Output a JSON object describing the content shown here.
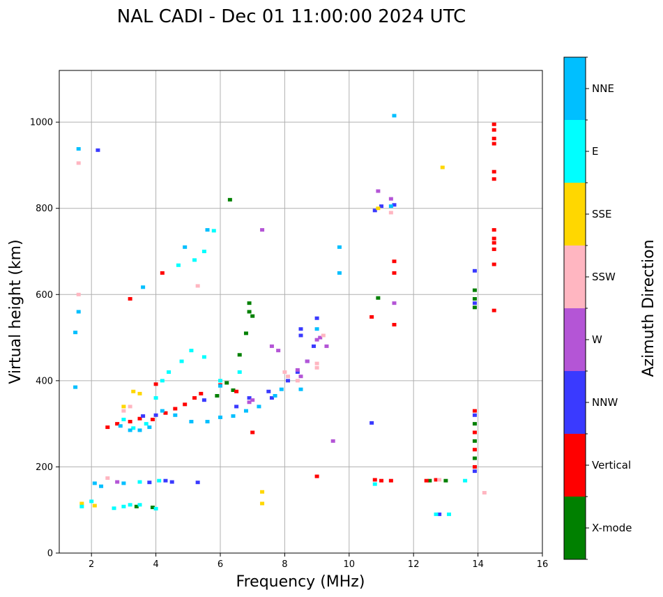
{
  "chart_data": {
    "type": "scatter",
    "title": "NAL CADI - Dec 01 11:00:00 2024 UTC",
    "xlabel": "Frequency (MHz)",
    "ylabel": "Virtual height (km)",
    "xlim": [
      1,
      16
    ],
    "ylim": [
      0,
      1120
    ],
    "xticks": [
      2,
      4,
      6,
      8,
      10,
      12,
      14,
      16
    ],
    "yticks": [
      0,
      200,
      400,
      600,
      800,
      1000
    ],
    "grid": true,
    "colorbar": {
      "label": "Azimuth Direction",
      "categories": [
        {
          "name": "X-mode",
          "color": "#008000"
        },
        {
          "name": "Vertical",
          "color": "#ff0000"
        },
        {
          "name": "NNW",
          "color": "#3a3aff"
        },
        {
          "name": "W",
          "color": "#b455d6"
        },
        {
          "name": "SSW",
          "color": "#ffb6c1"
        },
        {
          "name": "SSE",
          "color": "#ffd700"
        },
        {
          "name": "E",
          "color": "#00ffff"
        },
        {
          "name": "NNE",
          "color": "#00bfff"
        }
      ]
    },
    "series": [
      {
        "name": "X-mode",
        "points": [
          [
            3.4,
            108
          ],
          [
            3.9,
            106
          ],
          [
            6.3,
            820
          ],
          [
            6.9,
            580
          ],
          [
            6.9,
            560
          ],
          [
            7.0,
            550
          ],
          [
            6.6,
            460
          ],
          [
            6.8,
            510
          ],
          [
            10.9,
            592
          ],
          [
            13.9,
            610
          ],
          [
            13.9,
            590
          ],
          [
            13.9,
            570
          ],
          [
            13.9,
            300
          ],
          [
            13.9,
            260
          ],
          [
            13.9,
            220
          ],
          [
            13.0,
            168
          ],
          [
            12.5,
            168
          ],
          [
            6.2,
            395
          ],
          [
            6.4,
            378
          ],
          [
            5.9,
            365
          ]
        ]
      },
      {
        "name": "Vertical",
        "points": [
          [
            2.5,
            292
          ],
          [
            2.8,
            300
          ],
          [
            3.2,
            305
          ],
          [
            3.5,
            312
          ],
          [
            3.9,
            310
          ],
          [
            4.3,
            325
          ],
          [
            4.6,
            335
          ],
          [
            4.9,
            345
          ],
          [
            5.2,
            360
          ],
          [
            5.4,
            370
          ],
          [
            4.2,
            650
          ],
          [
            3.2,
            590
          ],
          [
            4.0,
            392
          ],
          [
            10.8,
            170
          ],
          [
            11.0,
            168
          ],
          [
            11.3,
            168
          ],
          [
            9.0,
            178
          ],
          [
            12.4,
            168
          ],
          [
            12.7,
            170
          ],
          [
            14.5,
            995
          ],
          [
            14.5,
            982
          ],
          [
            14.5,
            962
          ],
          [
            14.5,
            950
          ],
          [
            14.5,
            885
          ],
          [
            14.5,
            868
          ],
          [
            14.5,
            750
          ],
          [
            14.5,
            730
          ],
          [
            14.5,
            720
          ],
          [
            14.5,
            705
          ],
          [
            14.5,
            670
          ],
          [
            14.5,
            563
          ],
          [
            13.9,
            330
          ],
          [
            13.9,
            280
          ],
          [
            13.9,
            240
          ],
          [
            13.9,
            200
          ],
          [
            11.4,
            650
          ],
          [
            11.4,
            530
          ],
          [
            10.7,
            548
          ],
          [
            11.4,
            677
          ],
          [
            7.0,
            280
          ],
          [
            6.5,
            375
          ],
          [
            6.0,
            390
          ]
        ]
      },
      {
        "name": "NNW",
        "points": [
          [
            10.8,
            795
          ],
          [
            11.0,
            805
          ],
          [
            11.4,
            808
          ],
          [
            8.9,
            480
          ],
          [
            9.0,
            545
          ],
          [
            8.5,
            520
          ],
          [
            8.5,
            505
          ],
          [
            8.7,
            445
          ],
          [
            8.4,
            420
          ],
          [
            8.1,
            400
          ],
          [
            7.6,
            360
          ],
          [
            7.5,
            375
          ],
          [
            6.5,
            340
          ],
          [
            6.9,
            360
          ],
          [
            5.5,
            355
          ],
          [
            4.0,
            320
          ],
          [
            3.6,
            318
          ],
          [
            4.3,
            168
          ],
          [
            3.8,
            164
          ],
          [
            4.5,
            165
          ],
          [
            5.3,
            164
          ],
          [
            2.2,
            935
          ],
          [
            10.7,
            302
          ],
          [
            12.8,
            90
          ],
          [
            13.9,
            655
          ],
          [
            13.9,
            580
          ],
          [
            13.9,
            320
          ],
          [
            13.9,
            190
          ]
        ]
      },
      {
        "name": "W",
        "points": [
          [
            8.4,
            425
          ],
          [
            8.5,
            410
          ],
          [
            8.7,
            445
          ],
          [
            9.0,
            495
          ],
          [
            9.1,
            500
          ],
          [
            9.3,
            480
          ],
          [
            7.6,
            480
          ],
          [
            7.8,
            470
          ],
          [
            7.3,
            750
          ],
          [
            10.9,
            840
          ],
          [
            11.3,
            822
          ],
          [
            11.4,
            580
          ],
          [
            9.5,
            260
          ],
          [
            7.0,
            355
          ],
          [
            6.9,
            350
          ],
          [
            2.8,
            165
          ]
        ]
      },
      {
        "name": "SSW",
        "points": [
          [
            1.6,
            905
          ],
          [
            1.6,
            600
          ],
          [
            5.3,
            620
          ],
          [
            8.0,
            420
          ],
          [
            8.1,
            410
          ],
          [
            8.4,
            400
          ],
          [
            9.0,
            430
          ],
          [
            9.0,
            440
          ],
          [
            9.2,
            505
          ],
          [
            11.3,
            790
          ],
          [
            12.8,
            170
          ],
          [
            14.2,
            140
          ],
          [
            2.5,
            174
          ],
          [
            3.2,
            340
          ],
          [
            3.0,
            330
          ]
        ]
      },
      {
        "name": "SSE",
        "points": [
          [
            3.0,
            340
          ],
          [
            3.3,
            375
          ],
          [
            3.5,
            370
          ],
          [
            10.9,
            800
          ],
          [
            12.9,
            895
          ],
          [
            7.3,
            115
          ],
          [
            7.3,
            142
          ],
          [
            1.7,
            115
          ],
          [
            2.1,
            110
          ]
        ]
      },
      {
        "name": "E",
        "points": [
          [
            3.0,
            108
          ],
          [
            3.2,
            112
          ],
          [
            2.7,
            104
          ],
          [
            1.7,
            108
          ],
          [
            2.0,
            120
          ],
          [
            3.5,
            112
          ],
          [
            4.0,
            103
          ],
          [
            3.5,
            165
          ],
          [
            4.1,
            168
          ],
          [
            3.0,
            310
          ],
          [
            3.3,
            290
          ],
          [
            3.7,
            300
          ],
          [
            4.0,
            360
          ],
          [
            4.2,
            400
          ],
          [
            4.4,
            420
          ],
          [
            4.8,
            445
          ],
          [
            5.1,
            470
          ],
          [
            5.5,
            455
          ],
          [
            6.0,
            400
          ],
          [
            6.6,
            420
          ],
          [
            5.8,
            748
          ],
          [
            5.5,
            700
          ],
          [
            5.2,
            680
          ],
          [
            4.7,
            668
          ],
          [
            13.1,
            90
          ],
          [
            12.7,
            90
          ],
          [
            13.6,
            168
          ],
          [
            10.8,
            160
          ]
        ]
      },
      {
        "name": "NNE",
        "points": [
          [
            1.5,
            512
          ],
          [
            1.5,
            385
          ],
          [
            1.6,
            938
          ],
          [
            1.6,
            560
          ],
          [
            2.3,
            155
          ],
          [
            2.1,
            162
          ],
          [
            3.8,
            292
          ],
          [
            3.5,
            285
          ],
          [
            3.2,
            285
          ],
          [
            2.9,
            295
          ],
          [
            4.2,
            330
          ],
          [
            4.6,
            320
          ],
          [
            5.1,
            305
          ],
          [
            5.6,
            305
          ],
          [
            6.0,
            315
          ],
          [
            6.4,
            318
          ],
          [
            6.8,
            330
          ],
          [
            7.2,
            340
          ],
          [
            7.7,
            365
          ],
          [
            7.9,
            380
          ],
          [
            8.5,
            380
          ],
          [
            9.7,
            650
          ],
          [
            9.7,
            710
          ],
          [
            11.4,
            1015
          ],
          [
            11.3,
            805
          ],
          [
            3.6,
            617
          ],
          [
            4.9,
            710
          ],
          [
            5.6,
            750
          ],
          [
            6.0,
            388
          ],
          [
            3.0,
            162
          ],
          [
            9.0,
            520
          ]
        ]
      }
    ]
  }
}
